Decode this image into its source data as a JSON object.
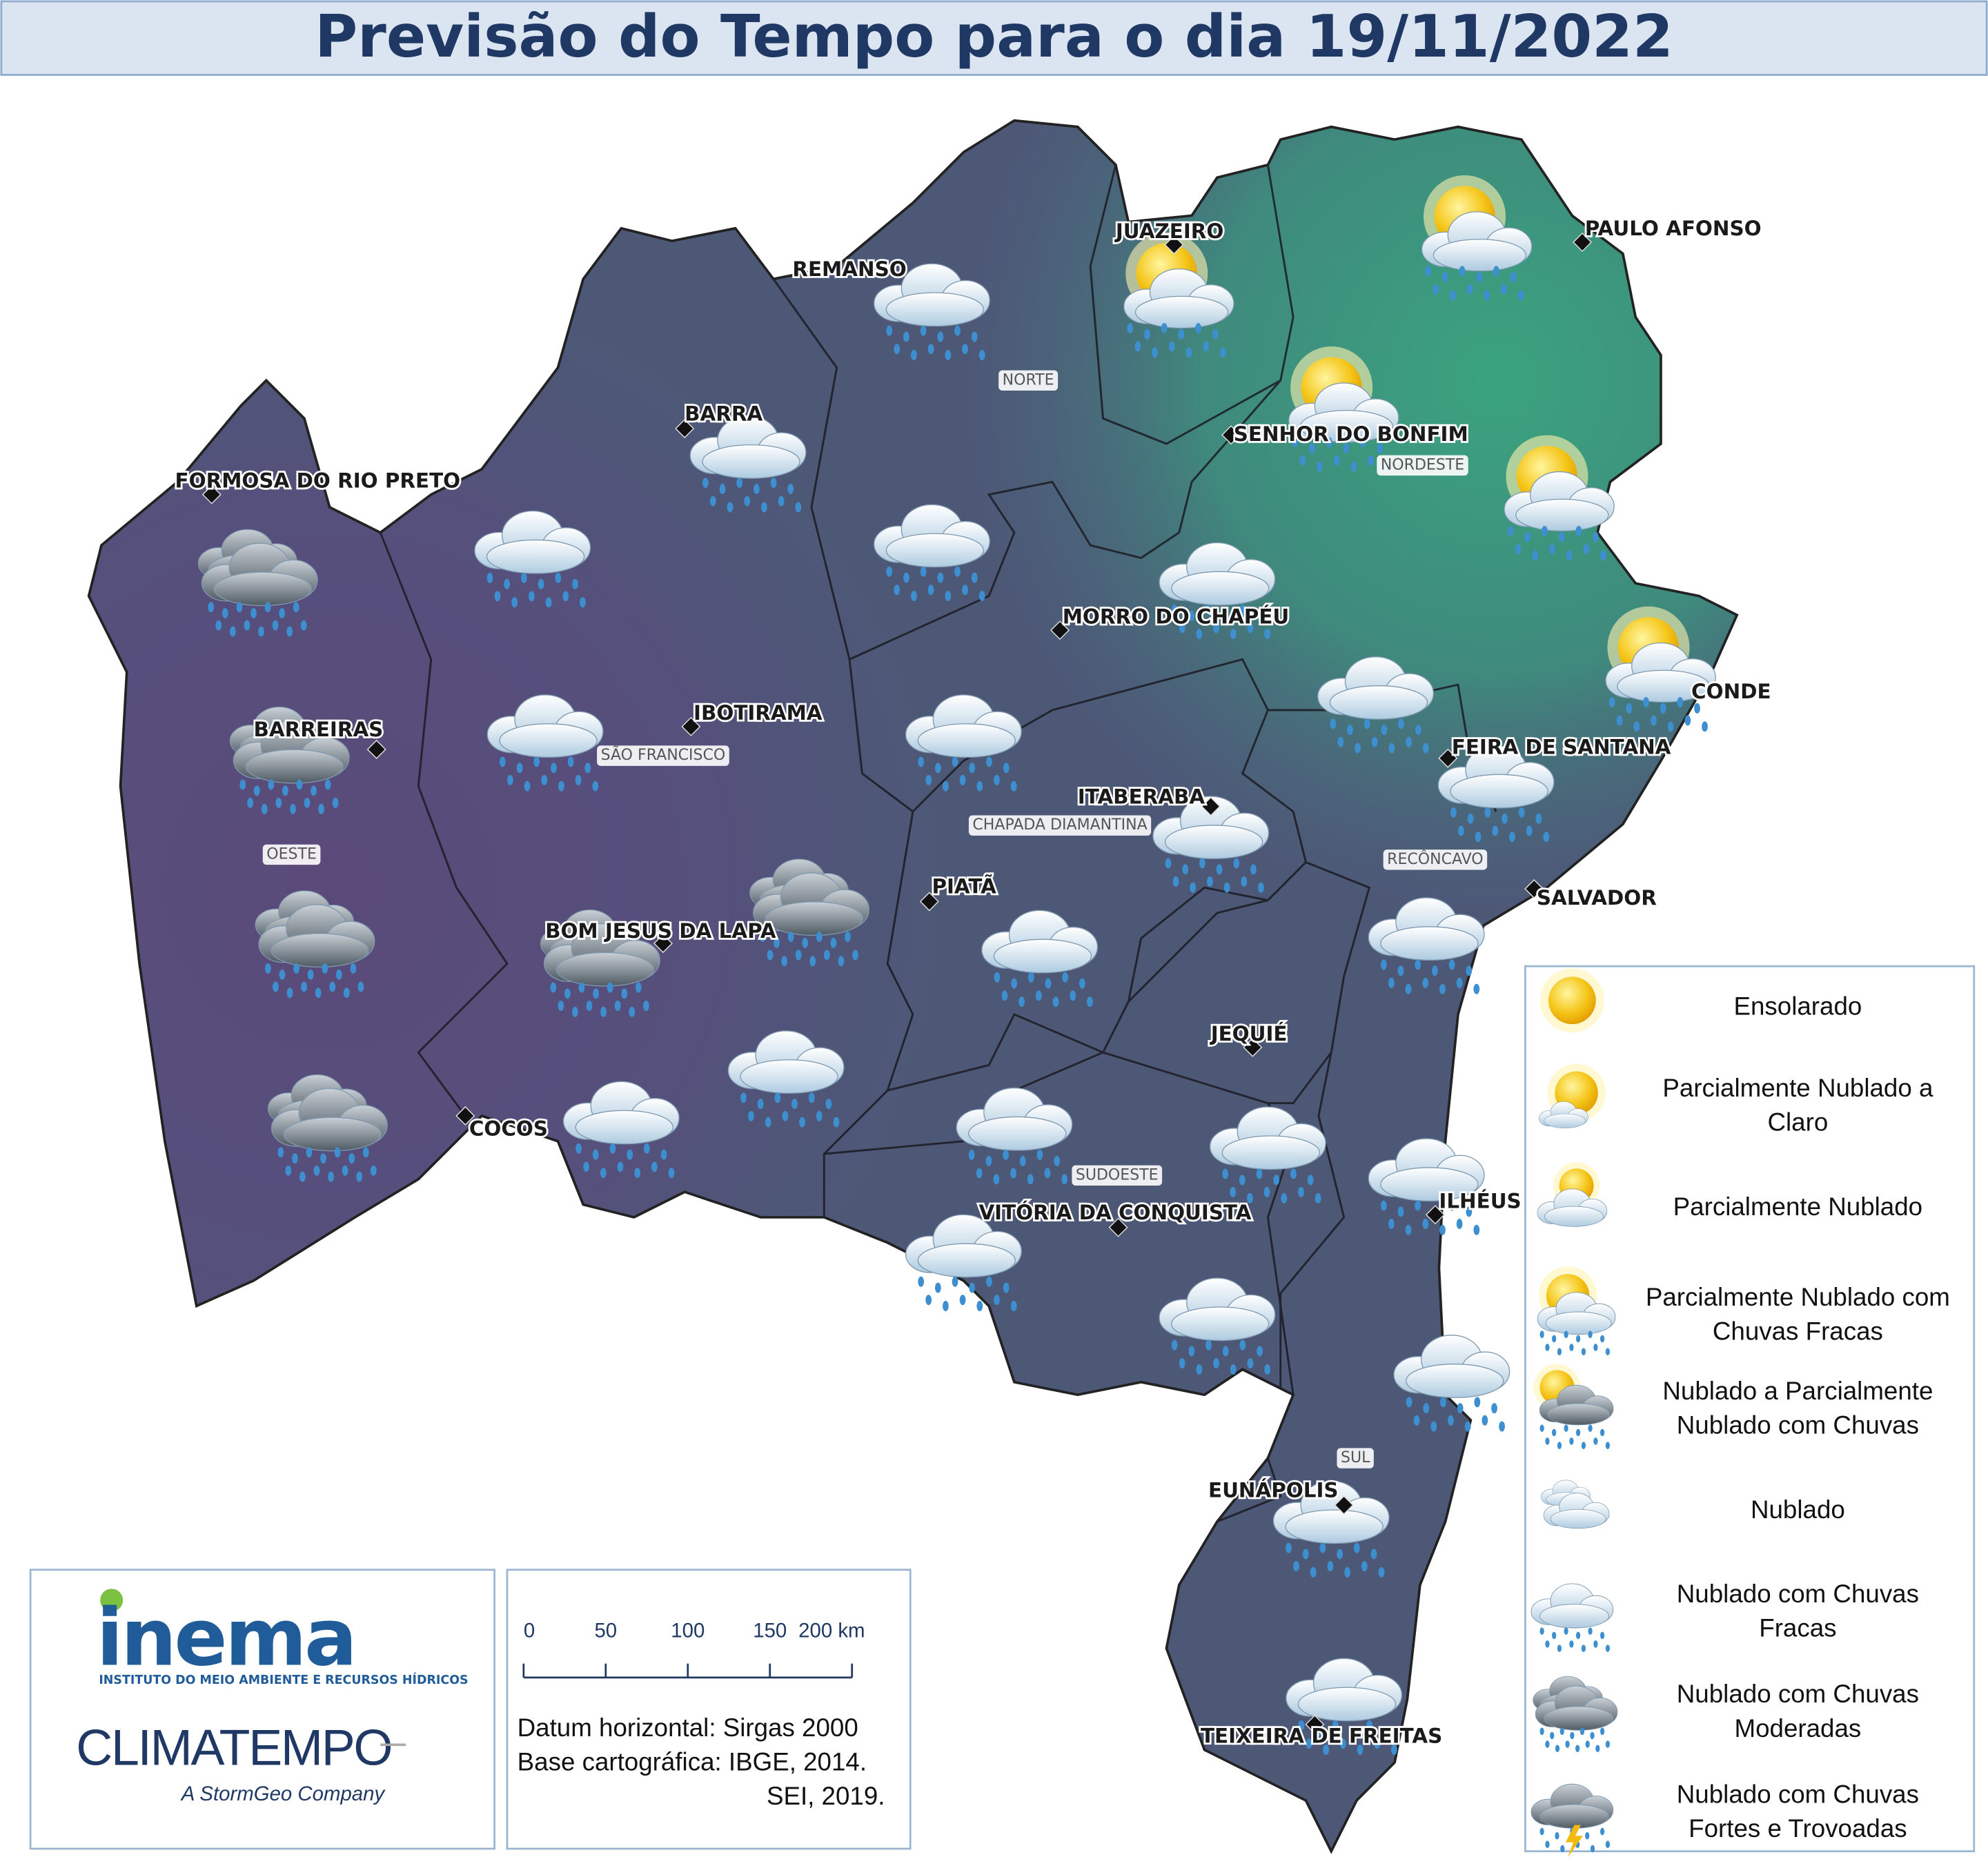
{
  "title": "Previsão do Tempo para o dia 19/11/2022",
  "cities": [
    {
      "name": "JUAZEIRO"
    },
    {
      "name": "PAULO AFONSO"
    },
    {
      "name": "REMANSO"
    },
    {
      "name": "BARRA"
    },
    {
      "name": "FORMOSA DO RIO PRETO"
    },
    {
      "name": "SENHOR DO BONFIM"
    },
    {
      "name": "MORRO DO CHAPÉU"
    },
    {
      "name": "CONDE"
    },
    {
      "name": "IBOTIRAMA"
    },
    {
      "name": "BARREIRAS"
    },
    {
      "name": "FEIRA DE SANTANA"
    },
    {
      "name": "ITABERABA"
    },
    {
      "name": "PIATÃ"
    },
    {
      "name": "SALVADOR"
    },
    {
      "name": "BOM JESUS DA LAPA"
    },
    {
      "name": "JEQUIÉ"
    },
    {
      "name": "COCOS"
    },
    {
      "name": "ILHÉUS"
    },
    {
      "name": "VITÓRIA DA CONQUISTA"
    },
    {
      "name": "EUNÁPOLIS"
    },
    {
      "name": "TEIXEIRA DE FREITAS"
    }
  ],
  "regions": [
    "NORTE",
    "NORDESTE",
    "SÃO FRANCISCO",
    "CHAPADA DIAMANTINA",
    "OESTE",
    "RECÔNCAVO",
    "SUDOESTE",
    "SUL"
  ],
  "legend": {
    "items": [
      {
        "lines": [
          "Ensolarado"
        ]
      },
      {
        "lines": [
          "Parcialmente Nublado a",
          "Claro"
        ]
      },
      {
        "lines": [
          "Parcialmente Nublado"
        ]
      },
      {
        "lines": [
          "Parcialmente Nublado com",
          "Chuvas Fracas"
        ]
      },
      {
        "lines": [
          "Nublado a Parcialmente",
          "Nublado com Chuvas"
        ]
      },
      {
        "lines": [
          "Nublado"
        ]
      },
      {
        "lines": [
          "Nublado com Chuvas",
          "Fracas"
        ]
      },
      {
        "lines": [
          "Nublado com Chuvas",
          "Moderadas"
        ]
      },
      {
        "lines": [
          "Nublado com Chuvas",
          "Fortes e Trovoadas"
        ]
      }
    ]
  },
  "logos": {
    "inema": "inema",
    "inema_subtitle": "INSTITUTO DO MEIO AMBIENTE E RECURSOS HÍDRICOS",
    "climatempo": "CLIMATEMPO",
    "climatempo_subtitle": "A StormGeo Company"
  },
  "scale": {
    "labels": [
      "0",
      "50",
      "100",
      "150",
      "200 km"
    ]
  },
  "credits": [
    "Datum horizontal: Sirgas 2000",
    "Base cartográfica: IBGE, 2014.",
    "SEI, 2019."
  ]
}
